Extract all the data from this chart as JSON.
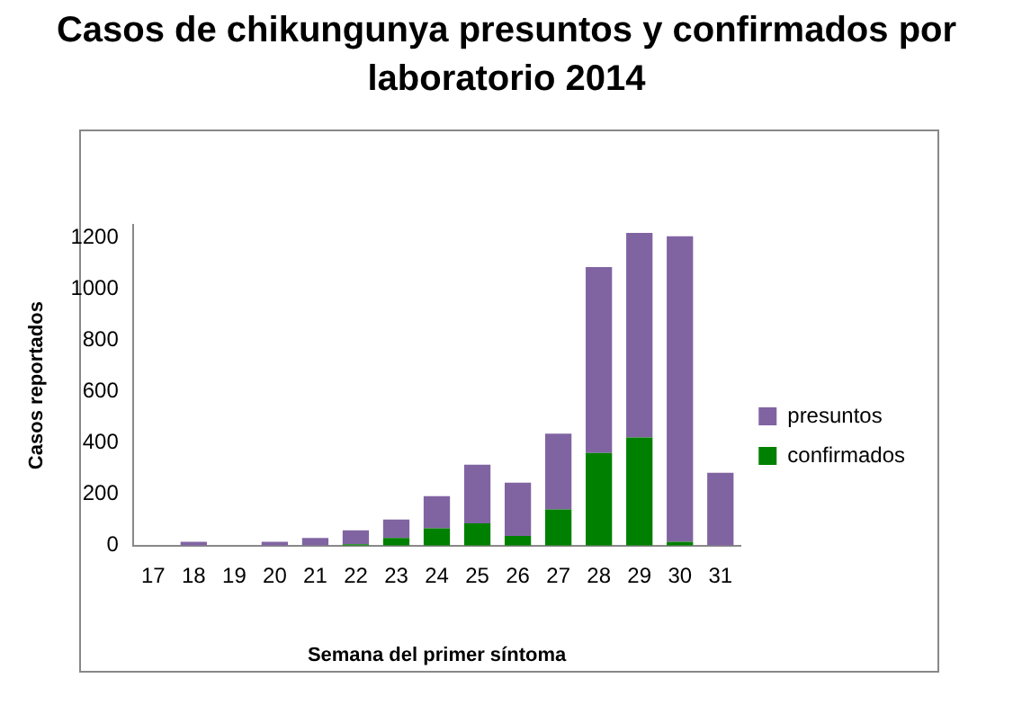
{
  "chart_data": {
    "type": "bar",
    "title": "Casos de chikungunya presuntos y confirmados por laboratorio 2014",
    "xlabel": "Semana del primer síntoma",
    "ylabel": "Casos reportados",
    "categories": [
      "17",
      "18",
      "19",
      "20",
      "21",
      "22",
      "23",
      "24",
      "25",
      "26",
      "27",
      "28",
      "29",
      "30",
      "31"
    ],
    "stacked": true,
    "series": [
      {
        "name": "confirmados",
        "color": "#008000",
        "values": [
          0,
          0,
          0,
          0,
          0,
          5,
          30,
          68,
          87,
          38,
          141,
          361,
          422,
          15,
          0
        ]
      },
      {
        "name": "presuntos",
        "color": "#8064a2",
        "values": [
          0,
          15,
          0,
          15,
          30,
          55,
          72,
          125,
          229,
          208,
          296,
          726,
          798,
          1192,
          284
        ]
      }
    ],
    "ylim": [
      0,
      1250
    ],
    "yticks": [
      0,
      200,
      400,
      600,
      800,
      1000,
      1200
    ],
    "grid": false,
    "legend": "right"
  }
}
